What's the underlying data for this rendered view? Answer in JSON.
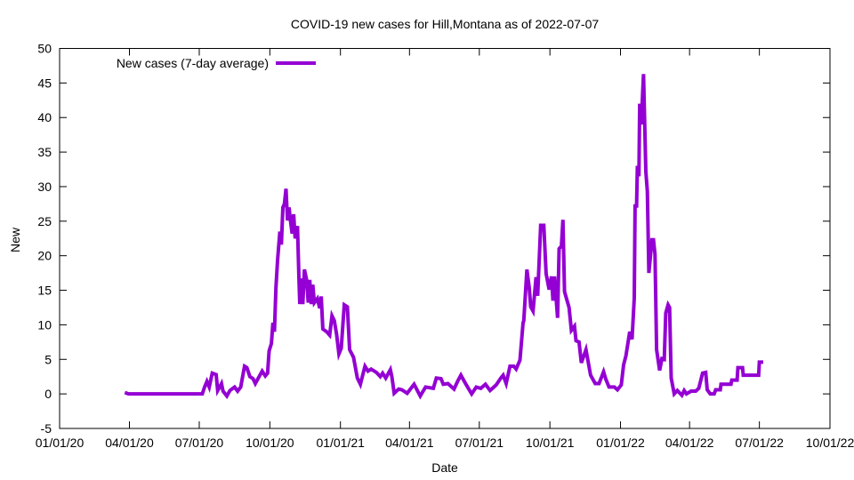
{
  "chart_data": {
    "type": "line",
    "title": "COVID-19 new cases for Hill,Montana as of 2022-07-07",
    "xlabel": "Date",
    "ylabel": "New",
    "x_unit": "days since 2020-01-01",
    "xlim": [
      0,
      1004
    ],
    "ylim": [
      -5,
      50
    ],
    "yticks": [
      -5,
      0,
      5,
      10,
      15,
      20,
      25,
      30,
      35,
      40,
      45,
      50
    ],
    "xticks": [
      {
        "day": 0,
        "label": "01/01/20"
      },
      {
        "day": 91,
        "label": "04/01/20"
      },
      {
        "day": 182,
        "label": "07/01/20"
      },
      {
        "day": 274,
        "label": "10/01/20"
      },
      {
        "day": 366,
        "label": "01/01/21"
      },
      {
        "day": 456,
        "label": "04/01/21"
      },
      {
        "day": 547,
        "label": "07/01/21"
      },
      {
        "day": 639,
        "label": "10/01/21"
      },
      {
        "day": 731,
        "label": "01/01/22"
      },
      {
        "day": 821,
        "label": "04/01/22"
      },
      {
        "day": 912,
        "label": "07/01/22"
      },
      {
        "day": 1004,
        "label": "10/01/22"
      }
    ],
    "grid": false,
    "legend_position": "top-left",
    "series": [
      {
        "name": "New cases (7-day average)",
        "color": "#9400d3",
        "points": [
          [
            85,
            0.2
          ],
          [
            90,
            0
          ],
          [
            186,
            0
          ],
          [
            189,
            1
          ],
          [
            192,
            1.8
          ],
          [
            195,
            1
          ],
          [
            199,
            3
          ],
          [
            204,
            2.8
          ],
          [
            206,
            0.5
          ],
          [
            211,
            1.5
          ],
          [
            213,
            0.4
          ],
          [
            218,
            -0.3
          ],
          [
            222,
            0.5
          ],
          [
            228,
            1
          ],
          [
            232,
            0.4
          ],
          [
            236,
            1
          ],
          [
            241,
            4
          ],
          [
            244,
            3.8
          ],
          [
            248,
            2.5
          ],
          [
            252,
            2.2
          ],
          [
            255,
            1.5
          ],
          [
            264,
            3.3
          ],
          [
            268,
            2.6
          ],
          [
            271,
            3
          ],
          [
            273,
            6.2
          ],
          [
            276,
            7.3
          ],
          [
            278,
            10.3
          ],
          [
            280,
            9
          ],
          [
            282,
            15.4
          ],
          [
            284,
            19.3
          ],
          [
            287,
            23.5
          ],
          [
            289,
            21.6
          ],
          [
            291,
            27
          ],
          [
            293,
            27.5
          ],
          [
            295,
            29.7
          ],
          [
            297,
            25.1
          ],
          [
            299,
            27
          ],
          [
            301,
            25
          ],
          [
            303,
            23.2
          ],
          [
            305,
            26
          ],
          [
            307,
            22.5
          ],
          [
            310,
            24.3
          ],
          [
            312,
            16.5
          ],
          [
            313,
            13
          ],
          [
            315,
            16.7
          ],
          [
            317,
            13
          ],
          [
            319,
            18
          ],
          [
            322,
            16.5
          ],
          [
            324,
            13.2
          ],
          [
            326,
            16.5
          ],
          [
            328,
            13
          ],
          [
            330,
            15.8
          ],
          [
            332,
            13.2
          ],
          [
            336,
            13.8
          ],
          [
            339,
            12.4
          ],
          [
            341,
            14.1
          ],
          [
            343,
            9.4
          ],
          [
            348,
            9
          ],
          [
            352,
            8.5
          ],
          [
            355,
            11.3
          ],
          [
            358,
            10.6
          ],
          [
            361,
            8.6
          ],
          [
            364,
            5.8
          ],
          [
            367,
            6.6
          ],
          [
            371,
            12.9
          ],
          [
            375,
            12.6
          ],
          [
            378,
            6.4
          ],
          [
            383,
            5.3
          ],
          [
            388,
            2.3
          ],
          [
            392,
            1.4
          ],
          [
            398,
            4
          ],
          [
            402,
            3.3
          ],
          [
            406,
            3.6
          ],
          [
            413,
            3.1
          ],
          [
            418,
            2.5
          ],
          [
            421,
            3
          ],
          [
            425,
            2.3
          ],
          [
            431,
            3.5
          ],
          [
            433,
            2.5
          ],
          [
            436,
            0.1
          ],
          [
            442,
            0.7
          ],
          [
            446,
            0.6
          ],
          [
            453,
            0.1
          ],
          [
            462,
            1.4
          ],
          [
            470,
            -0.3
          ],
          [
            477,
            1
          ],
          [
            487,
            0.8
          ],
          [
            491,
            2.3
          ],
          [
            497,
            2.2
          ],
          [
            500,
            1.4
          ],
          [
            506,
            1.5
          ],
          [
            514,
            0.7
          ],
          [
            519,
            1.9
          ],
          [
            523,
            2.7
          ],
          [
            529,
            1.5
          ],
          [
            537,
            0
          ],
          [
            543,
            1
          ],
          [
            549,
            0.8
          ],
          [
            555,
            1.4
          ],
          [
            561,
            0.5
          ],
          [
            569,
            1.3
          ],
          [
            575,
            2.3
          ],
          [
            578,
            2.7
          ],
          [
            582,
            1.5
          ],
          [
            587,
            4
          ],
          [
            592,
            4
          ],
          [
            595,
            3.6
          ],
          [
            600,
            4.9
          ],
          [
            604,
            10.3
          ],
          [
            605,
            10.6
          ],
          [
            609,
            18
          ],
          [
            612,
            15.4
          ],
          [
            614,
            12.6
          ],
          [
            617,
            12
          ],
          [
            621,
            16.9
          ],
          [
            623,
            14.2
          ],
          [
            627,
            24.4
          ],
          [
            631,
            24.4
          ],
          [
            634,
            17.4
          ],
          [
            638,
            15.1
          ],
          [
            641,
            17
          ],
          [
            643,
            13.5
          ],
          [
            645,
            17
          ],
          [
            649,
            11
          ],
          [
            651,
            21
          ],
          [
            654,
            21.4
          ],
          [
            656,
            25.2
          ],
          [
            658,
            14.8
          ],
          [
            664,
            12.5
          ],
          [
            667,
            9.2
          ],
          [
            671,
            9.8
          ],
          [
            673,
            7.7
          ],
          [
            677,
            7.5
          ],
          [
            680,
            4.5
          ],
          [
            686,
            6.4
          ],
          [
            692,
            2.7
          ],
          [
            698,
            1.5
          ],
          [
            703,
            1.5
          ],
          [
            709,
            3.2
          ],
          [
            712,
            2.1
          ],
          [
            716,
            1
          ],
          [
            723,
            1
          ],
          [
            727,
            0.6
          ],
          [
            732,
            1.3
          ],
          [
            735,
            4.2
          ],
          [
            738,
            5.5
          ],
          [
            743,
            9
          ],
          [
            746,
            7.9
          ],
          [
            749,
            13.9
          ],
          [
            750,
            27.2
          ],
          [
            752,
            27.2
          ],
          [
            753,
            33
          ],
          [
            755,
            31.5
          ],
          [
            756,
            42
          ],
          [
            758,
            39
          ],
          [
            761,
            46.3
          ],
          [
            764,
            32.2
          ],
          [
            766,
            29.3
          ],
          [
            768,
            17.5
          ],
          [
            772,
            22.3
          ],
          [
            774,
            22.3
          ],
          [
            776,
            20.2
          ],
          [
            778,
            6.4
          ],
          [
            782,
            3.4
          ],
          [
            785,
            5.1
          ],
          [
            788,
            5
          ],
          [
            790,
            11.7
          ],
          [
            793,
            12.9
          ],
          [
            795,
            12.5
          ],
          [
            797,
            2.3
          ],
          [
            801,
            0
          ],
          [
            805,
            0.5
          ],
          [
            811,
            -0.2
          ],
          [
            814,
            0.5
          ],
          [
            817,
            0
          ],
          [
            823,
            0.4
          ],
          [
            829,
            0.4
          ],
          [
            833,
            0.8
          ],
          [
            838,
            3
          ],
          [
            842,
            3.1
          ],
          [
            844,
            0.6
          ],
          [
            848,
            0
          ],
          [
            853,
            0
          ],
          [
            855,
            0.6
          ],
          [
            861,
            0.6
          ],
          [
            862,
            1.4
          ],
          [
            875,
            1.4
          ],
          [
            876,
            2
          ],
          [
            883,
            2
          ],
          [
            884,
            3.8
          ],
          [
            890,
            3.8
          ],
          [
            891,
            2.7
          ],
          [
            911,
            2.7
          ],
          [
            912,
            4.6
          ],
          [
            917,
            4.6
          ]
        ]
      }
    ]
  }
}
